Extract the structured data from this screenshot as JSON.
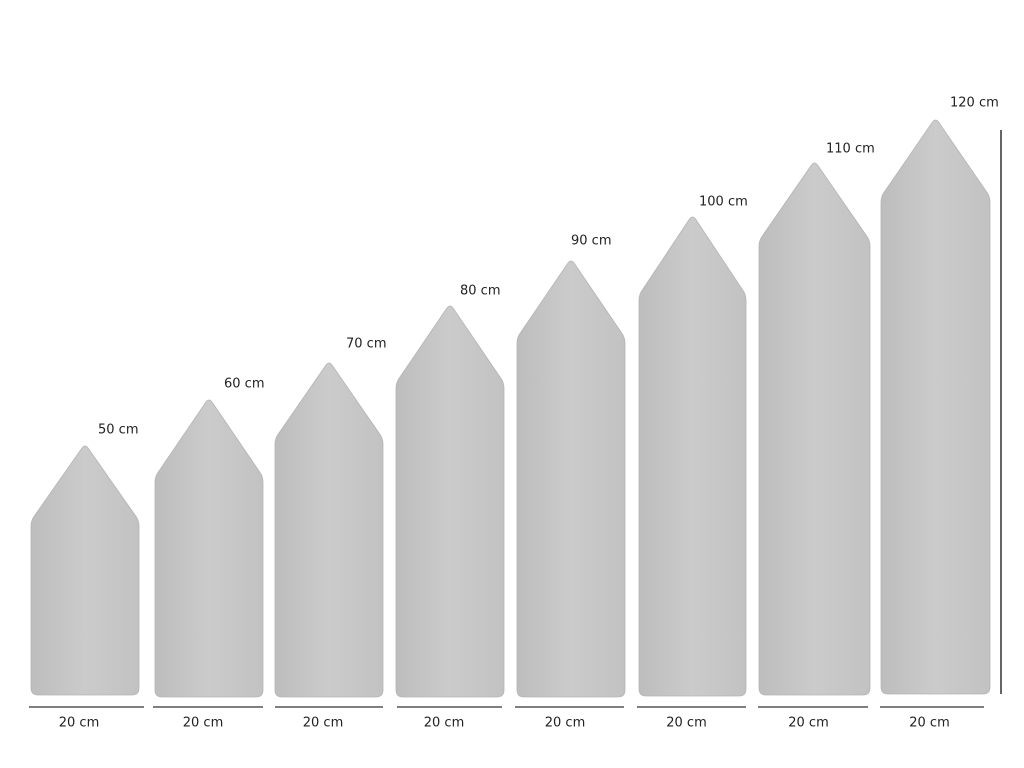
{
  "panels": [
    {
      "height_label": "50 cm",
      "width_label": "20 cm"
    },
    {
      "height_label": "60 cm",
      "width_label": "20 cm"
    },
    {
      "height_label": "70 cm",
      "width_label": "20 cm"
    },
    {
      "height_label": "80 cm",
      "width_label": "20 cm"
    },
    {
      "height_label": "90 cm",
      "width_label": "20 cm"
    },
    {
      "height_label": "100 cm",
      "width_label": "20 cm"
    },
    {
      "height_label": "110 cm",
      "width_label": "20 cm"
    },
    {
      "height_label": "120 cm",
      "width_label": "20 cm"
    }
  ]
}
